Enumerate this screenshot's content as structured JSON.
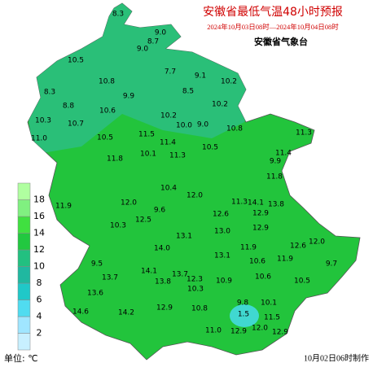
{
  "header": {
    "title": "安徽省最低气温48小时预报",
    "subtitle": "2024年10月03日08时—2024年10月04日08时",
    "issuer": "安徽省气象台"
  },
  "legend": {
    "ticks": [
      2,
      4,
      6,
      8,
      10,
      12,
      14,
      16,
      18
    ],
    "colors": [
      "#c8f0ff",
      "#a0e6ff",
      "#50dcf0",
      "#20c8c8",
      "#20b8a0",
      "#22c080",
      "#22c840",
      "#40e040",
      "#80f080",
      "#b0ffa0"
    ],
    "unit": "单位: ℃"
  },
  "footer": {
    "made": "10月02日06时制作"
  },
  "map": {
    "base_color": "#22c43c",
    "north_color": "#2abf78",
    "cold_color": "#40d8d0"
  },
  "stations": [
    "8.3",
    "9.0",
    "8.7",
    "9.0",
    "10.5",
    "7.7",
    "9.1",
    "10.2",
    "10.8",
    "8.3",
    "9.9",
    "8.5",
    "10.2",
    "8.8",
    "10.6",
    "10.3",
    "10.7",
    "10.2",
    "10.0",
    "9.0",
    "10.8",
    "11.3",
    "11.0",
    "10.5",
    "11.5",
    "11.4",
    "10.5",
    "11.4",
    "9.9",
    "10.1",
    "11.3",
    "11.8",
    "11.8",
    "10.4",
    "12.0",
    "11.3",
    "14.1",
    "13.8",
    "11.9",
    "12.0",
    "9.6",
    "12.5",
    "12.6",
    "12.9",
    "10.3",
    "13.1",
    "13.0",
    "12.9",
    "12.0",
    "11.9",
    "12.6",
    "14.0",
    "13.1",
    "11.9",
    "9.5",
    "10.6",
    "9.7",
    "14.1",
    "13.7",
    "13.7",
    "12.3",
    "13.8",
    "10.9",
    "10.6",
    "10.5",
    "10.3",
    "13.6",
    "9.8",
    "10.1",
    "14.6",
    "14.2",
    "12.9",
    "10.8",
    "1.5",
    "11.5",
    "11.0",
    "12.0",
    "12.9",
    "12.9"
  ]
}
